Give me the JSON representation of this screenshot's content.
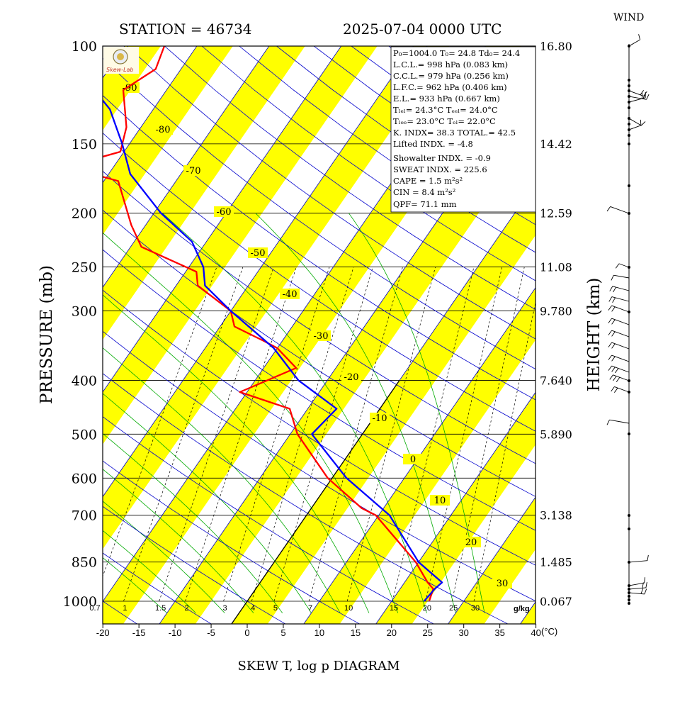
{
  "header": {
    "station": "STATION = 46734",
    "datetime": "2025-07-04 0000 UTC",
    "wind_label": "WIND"
  },
  "axes": {
    "ylabel": "PRESSURE (mb)",
    "ylabel_right": "HEIGHT (km)",
    "xlabel": "SKEW T, log p DIAGRAM",
    "x_unit": "(°C)",
    "mixing_ratio_unit": "g/kg"
  },
  "logo": {
    "text": "Skew-Lab"
  },
  "info": {
    "p0_line": "P₀=1004.0 T₀= 24.8 Td₀= 24.4",
    "lcl": "L.C.L.= 998 hPa (0.083 km)",
    "ccl": "C.C.L.= 979 hPa (0.256 km)",
    "lfc": "L.F.C.= 962 hPa (0.406 km)",
    "el": "E.L.= 933 hPa (0.667 km)",
    "tlcl": "Tₗₑₗ= 24.3°C Tₑₑₗ= 24.0°C",
    "tlfc": "Tₗₒₑ= 23.0°C  Tₑₗ= 22.0°C",
    "kindex": "K. INDX= 38.3  TOTAL.= 42.5",
    "lifted": "Lifted INDX. =  -4.8",
    "showalter": "Showalter INDX. =   -0.9",
    "sweat": "SWEAT INDX. =  225.6",
    "cape": "CAPE =    1.5 m²s²",
    "cin": "CIN  =    8.4 m²s²",
    "qpf": "QPF= 71.1 mm"
  },
  "chart_data": {
    "type": "line",
    "title": "SKEW T, log p DIAGRAM",
    "xlabel": "(°C)",
    "ylabel": "PRESSURE (mb)",
    "y_scale": "log",
    "xlim": [
      -20,
      40
    ],
    "ylim": [
      1000,
      100
    ],
    "pressure_ticks": [
      100,
      150,
      200,
      250,
      300,
      400,
      500,
      600,
      700,
      850,
      1000
    ],
    "height_ticks": [
      "16.80",
      "14.42",
      "12.59",
      "11.08",
      "9.780",
      "7.640",
      "5.890",
      "3.138",
      "1.485",
      "0.067"
    ],
    "temp_ticks": [
      -20,
      -15,
      -10,
      -5,
      0,
      5,
      10,
      15,
      20,
      25,
      30,
      35,
      40
    ],
    "isotherm_labels": [
      -90,
      -80,
      -70,
      -60,
      -50,
      -40,
      -30,
      -20,
      -10,
      0,
      10,
      20,
      30
    ],
    "mixing_ratio_labels": [
      "0.7",
      "1",
      "1.5",
      "2",
      "3",
      "4",
      "5",
      "7",
      "10",
      "15",
      "20",
      "25",
      "30"
    ],
    "colors": {
      "temperature": "#ff0000",
      "dewpoint": "#0000ff",
      "bands": "#ffff00",
      "isotherm": "#0000cc",
      "moist_adiabat": "#00aa00"
    },
    "series": [
      {
        "kind": "temperature",
        "points": [
          {
            "p": 1000,
            "t": 25.2
          },
          {
            "p": 950,
            "t": 24.6
          },
          {
            "p": 925,
            "t": 23.2
          },
          {
            "p": 850,
            "t": 19.6
          },
          {
            "p": 700,
            "t": 9.6
          },
          {
            "p": 680,
            "t": 7.0
          },
          {
            "p": 600,
            "t": -0.6
          },
          {
            "p": 500,
            "t": -9.0
          },
          {
            "p": 450,
            "t": -12.5
          },
          {
            "p": 420,
            "t": -21.0
          },
          {
            "p": 380,
            "t": -15.5
          },
          {
            "p": 350,
            "t": -20.0
          },
          {
            "p": 340,
            "t": -22.5
          },
          {
            "p": 320,
            "t": -28.0
          },
          {
            "p": 300,
            "t": -30.0
          },
          {
            "p": 270,
            "t": -37.0
          },
          {
            "p": 255,
            "t": -38.5
          },
          {
            "p": 230,
            "t": -48.5
          },
          {
            "p": 210,
            "t": -52.0
          },
          {
            "p": 175,
            "t": -58.0
          },
          {
            "p": 165,
            "t": -66.5
          },
          {
            "p": 155,
            "t": -60.5
          },
          {
            "p": 140,
            "t": -62.0
          },
          {
            "p": 120,
            "t": -66.0
          },
          {
            "p": 110,
            "t": -63.5
          },
          {
            "p": 100,
            "t": -64.5
          }
        ]
      },
      {
        "kind": "dewpoint",
        "points": [
          {
            "p": 1000,
            "t": 24.5
          },
          {
            "p": 950,
            "t": 24.8
          },
          {
            "p": 925,
            "t": 25.2
          },
          {
            "p": 850,
            "t": 20.0
          },
          {
            "p": 700,
            "t": 11.5
          },
          {
            "p": 600,
            "t": 2.0
          },
          {
            "p": 500,
            "t": -7.0
          },
          {
            "p": 450,
            "t": -6.0
          },
          {
            "p": 400,
            "t": -14.0
          },
          {
            "p": 350,
            "t": -20.5
          },
          {
            "p": 300,
            "t": -30.0
          },
          {
            "p": 270,
            "t": -36.0
          },
          {
            "p": 250,
            "t": -38.0
          },
          {
            "p": 225,
            "t": -42.0
          },
          {
            "p": 200,
            "t": -49.0
          },
          {
            "p": 170,
            "t": -57.0
          },
          {
            "p": 150,
            "t": -61.0
          },
          {
            "p": 130,
            "t": -66.0
          },
          {
            "p": 120,
            "t": -70.0
          },
          {
            "p": 100,
            "t": -78.0
          }
        ]
      }
    ]
  }
}
